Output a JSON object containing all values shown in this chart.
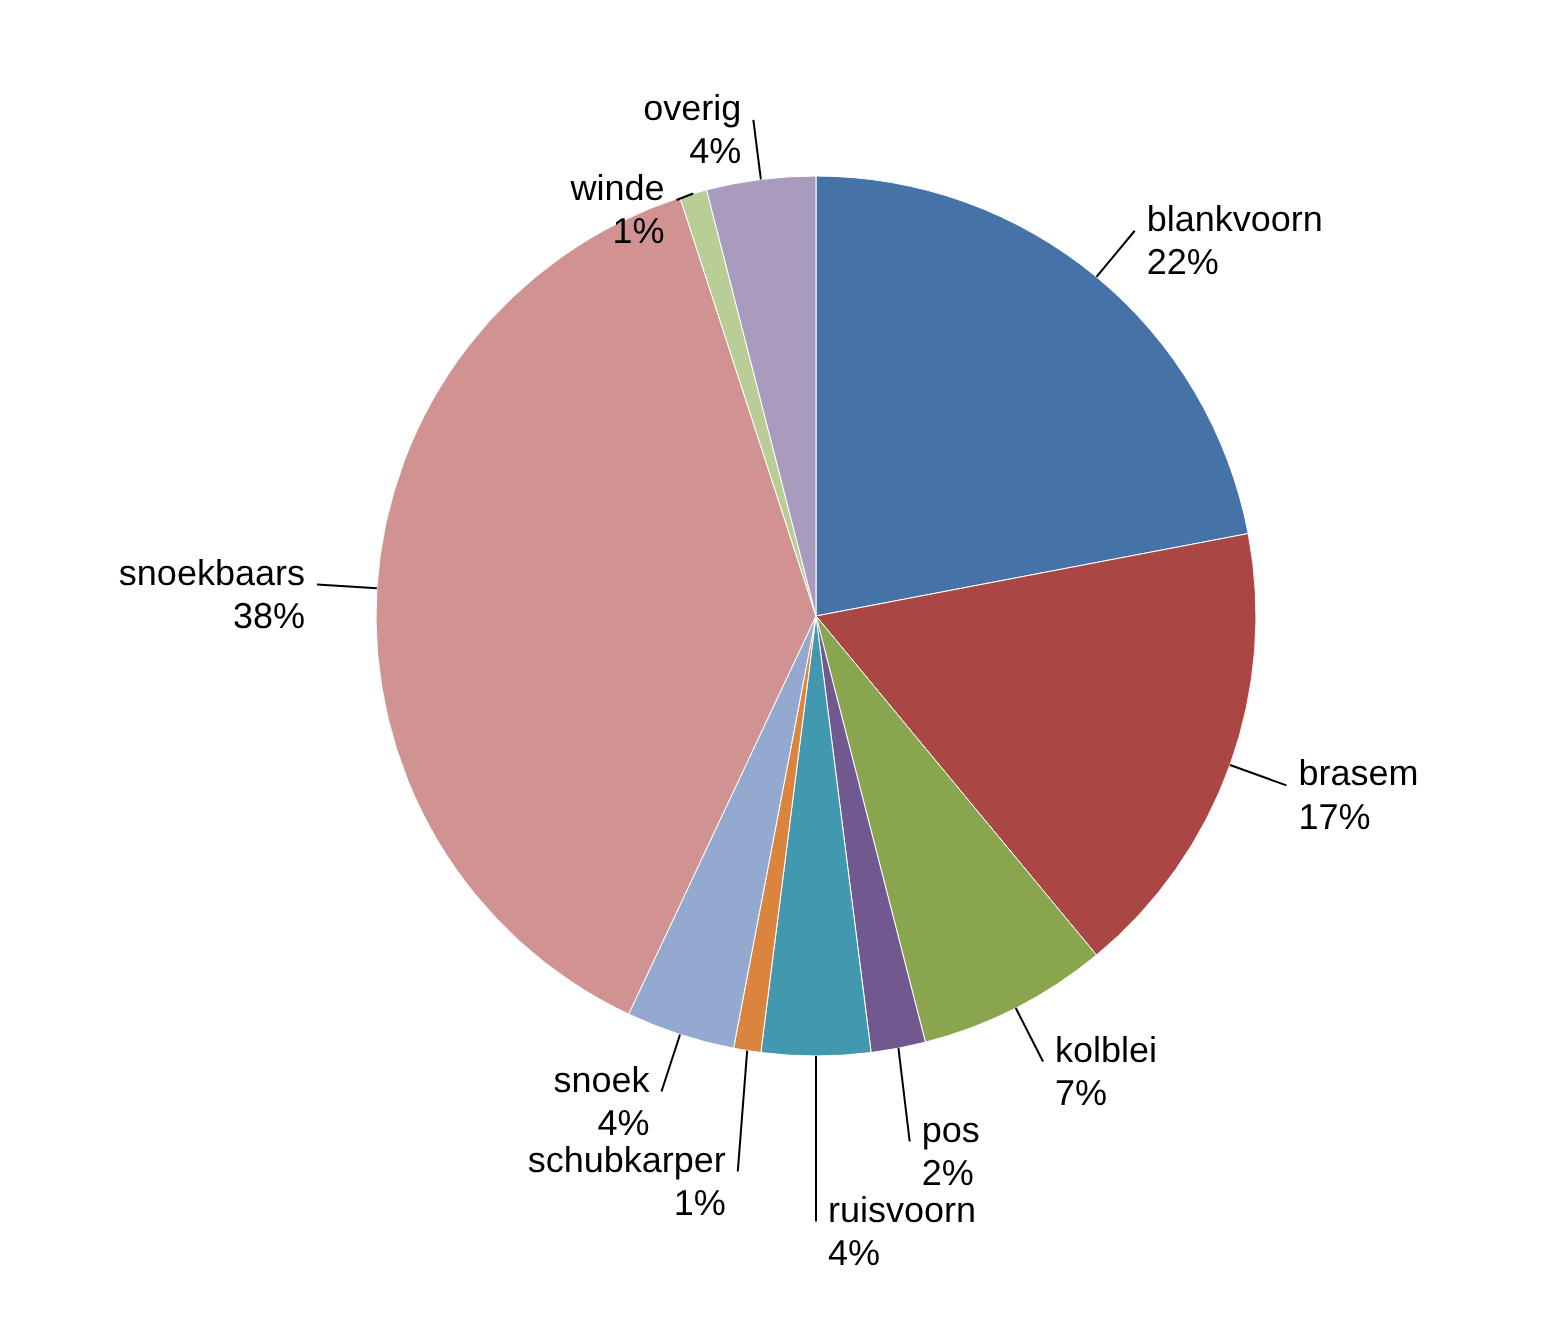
{
  "chart_data": {
    "type": "pie",
    "categories": [
      "blankvoorn",
      "brasem",
      "kolblei",
      "pos",
      "ruisvoorn",
      "schubkarper",
      "snoek",
      "snoekbaars",
      "winde",
      "overig"
    ],
    "values": [
      22,
      17,
      7,
      2,
      4,
      1,
      4,
      38,
      1,
      4
    ],
    "value_labels": [
      "22%",
      "17%",
      "7%",
      "2%",
      "4%",
      "1%",
      "4%",
      "38%",
      "1%",
      "4%"
    ],
    "colors": [
      "#4572a7",
      "#aa4643",
      "#89a54e",
      "#71588f",
      "#4198af",
      "#db843d",
      "#93a9cf",
      "#d19392",
      "#b9cd96",
      "#a99bbd"
    ]
  }
}
